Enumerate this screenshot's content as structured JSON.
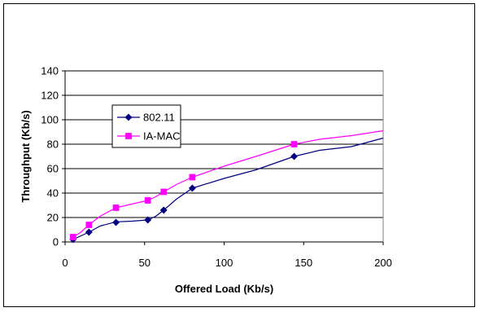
{
  "chart_data": {
    "type": "line",
    "title": "",
    "xlabel": "Offered Load (Kb/s)",
    "ylabel": "Throughput (Kb/s)",
    "xlim": [
      0,
      200
    ],
    "ylim": [
      0,
      140
    ],
    "xticks": [
      0,
      50,
      100,
      150,
      200
    ],
    "yticks": [
      0,
      20,
      40,
      60,
      80,
      100,
      120,
      140
    ],
    "grid": "horizontal",
    "legend_position": "upper-left inside plot",
    "series": [
      {
        "name": "802.11",
        "color": "#000080",
        "marker": "diamond",
        "markers": [
          [
            5,
            2
          ],
          [
            15,
            8
          ],
          [
            32,
            16
          ],
          [
            52,
            18
          ],
          [
            62,
            26
          ],
          [
            80,
            44
          ],
          [
            144,
            70
          ]
        ],
        "line": [
          [
            5,
            2
          ],
          [
            10,
            5
          ],
          [
            15,
            8
          ],
          [
            22,
            13
          ],
          [
            32,
            16.5
          ],
          [
            42,
            17
          ],
          [
            52,
            18
          ],
          [
            57,
            21
          ],
          [
            62,
            26
          ],
          [
            70,
            35
          ],
          [
            80,
            44
          ],
          [
            100,
            52
          ],
          [
            120,
            59
          ],
          [
            144,
            70
          ],
          [
            160,
            75
          ],
          [
            180,
            78
          ],
          [
            200,
            85
          ]
        ]
      },
      {
        "name": "IA-MAC",
        "color": "#ff00ff",
        "marker": "square",
        "markers": [
          [
            5,
            4
          ],
          [
            15,
            14
          ],
          [
            32,
            28
          ],
          [
            52,
            34
          ],
          [
            62,
            41
          ],
          [
            80,
            53
          ],
          [
            144,
            80
          ]
        ],
        "line": [
          [
            5,
            4
          ],
          [
            10,
            8
          ],
          [
            15,
            14
          ],
          [
            22,
            21
          ],
          [
            32,
            28
          ],
          [
            42,
            31
          ],
          [
            52,
            34
          ],
          [
            57,
            37
          ],
          [
            62,
            41
          ],
          [
            70,
            47
          ],
          [
            80,
            53
          ],
          [
            100,
            62
          ],
          [
            120,
            70
          ],
          [
            144,
            80
          ],
          [
            160,
            84
          ],
          [
            180,
            87
          ],
          [
            200,
            91
          ]
        ]
      }
    ]
  }
}
